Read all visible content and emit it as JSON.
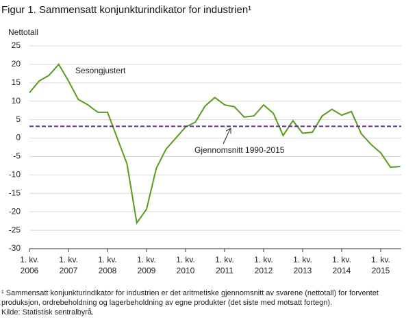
{
  "title": "Figur 1. Sammensatt konjunkturindikator for industrien¹",
  "chart_data": {
    "type": "line",
    "ylabel": "Nettotall",
    "categories": [
      "1. kv. 2006",
      null,
      null,
      null,
      "1. kv. 2007",
      null,
      null,
      null,
      "1. kv. 2008",
      null,
      null,
      null,
      "1. kv. 2009",
      null,
      null,
      null,
      "1. kv. 2010",
      null,
      null,
      null,
      "1. kv. 2011",
      null,
      null,
      null,
      "1. kv. 2012",
      null,
      null,
      null,
      "1. kv. 2013",
      null,
      null,
      null,
      "1. kv. 2014",
      null,
      null,
      null,
      "1. kv. 2015",
      null,
      null
    ],
    "series": [
      {
        "name": "Sesongjustert",
        "color": "#5a9a1c",
        "values": [
          12.3,
          15.5,
          17,
          20,
          15.5,
          10.5,
          9,
          7,
          7,
          0,
          -7,
          -23,
          -19.3,
          -8.2,
          -3,
          0,
          3,
          4.3,
          8.7,
          11,
          9,
          8.5,
          5.7,
          6,
          9,
          6.7,
          0.7,
          4.7,
          1.3,
          1.6,
          6,
          7.8,
          6.2,
          7.2,
          1.2,
          -1.7,
          -4,
          -7.9,
          -7.7
        ]
      }
    ],
    "average": {
      "label": "Gjennomsnitt  1990-2015",
      "value": 3.2,
      "color": "#5c2d91"
    },
    "ylim": [
      -30,
      25
    ],
    "yticks": [
      -30,
      -25,
      -20,
      -15,
      -10,
      -5,
      0,
      5,
      10,
      15,
      20,
      25
    ],
    "grid": true
  },
  "footnote": [
    "¹ Sammensatt konjunkturindikator  for industrien  er det aritmetiske gjennomsnitt av svarene (nettotall) for forventet produksjon, ordrebeholdning og lagerbeholdning av egne produkter  (det siste med motsatt fortegn).",
    "Kilde: Statistisk sentralbyrå."
  ]
}
